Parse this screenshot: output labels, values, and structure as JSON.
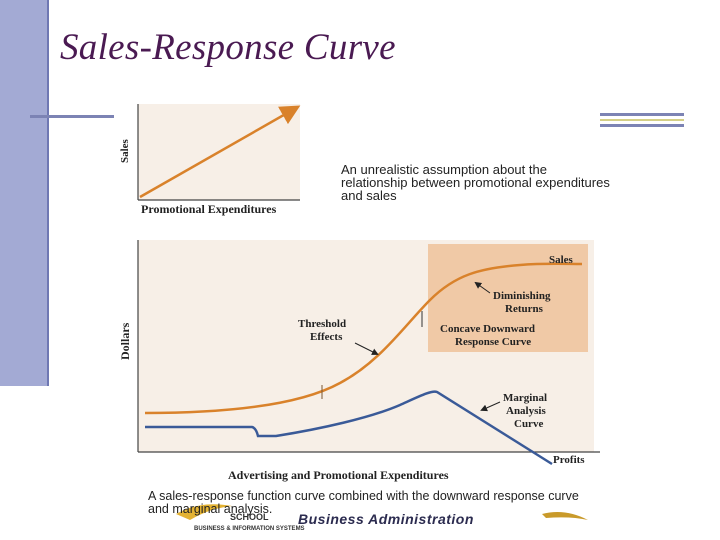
{
  "slide": {
    "title": "Sales-Response Curve"
  },
  "top_chart": {
    "y_axis_label": "Sales",
    "x_axis_label": "Promotional Expenditures",
    "caption": "An unrealistic assumption about the relationship between promotional expenditures and sales"
  },
  "bottom_chart": {
    "y_axis_label": "Dollars",
    "x_axis_label": "Advertising and Promotional Expenditures",
    "labels": {
      "sales": "Sales",
      "diminishing_line1": "Diminishing",
      "diminishing_line2": "Returns",
      "concave_line1": "Concave Downward",
      "concave_line2": "Response Curve",
      "threshold_line1": "Threshold",
      "threshold_line2": "Effects",
      "marginal_line1": "Marginal",
      "marginal_line2": "Analysis",
      "marginal_line3": "Curve",
      "profits": "Profits"
    },
    "caption": "A sales-response function curve combined with the downward response curve and marginal analysis."
  },
  "footer": {
    "school": "SCHOOL",
    "subline": "BUSINESS & INFORMATION SYSTEMS",
    "department": "Business Administration"
  },
  "colors": {
    "accent_bar": "#a3aad4",
    "title": "#4a1a52",
    "sales_curve": "#d9822b",
    "marginal_curve": "#3a5a98",
    "panel_bg": "#f7efe7",
    "highlight_box": "#f0c9a6"
  }
}
